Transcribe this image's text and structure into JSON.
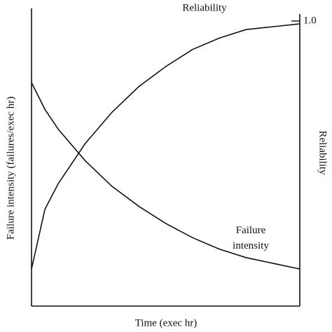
{
  "chart_data": {
    "type": "line",
    "xlabel": "Time (exec hr)",
    "ylabel": "Failure intensity (failures/exec hr)",
    "y2label": "Reliability",
    "x": [
      0,
      0.5,
      1,
      2,
      3,
      4,
      5,
      6,
      7,
      8,
      9,
      10
    ],
    "xlim": [
      0,
      10
    ],
    "ylim": [
      0,
      10
    ],
    "y2lim": [
      0,
      1
    ],
    "y2ticks": [
      {
        "value": 1,
        "label": "1.0"
      }
    ],
    "series": [
      {
        "name": "Failure intensity",
        "color": "#111111",
        "values": [
          7.84,
          6.9,
          6.2,
          5.1,
          4.2,
          3.5,
          2.9,
          2.4,
          2.0,
          1.7,
          1.5,
          1.3
        ]
      },
      {
        "name": "Reliability",
        "color": "#111111",
        "axis": "y2",
        "values": [
          0.13,
          0.34,
          0.43,
          0.57,
          0.68,
          0.77,
          0.84,
          0.9,
          0.94,
          0.97,
          0.98,
          0.99
        ]
      }
    ]
  }
}
